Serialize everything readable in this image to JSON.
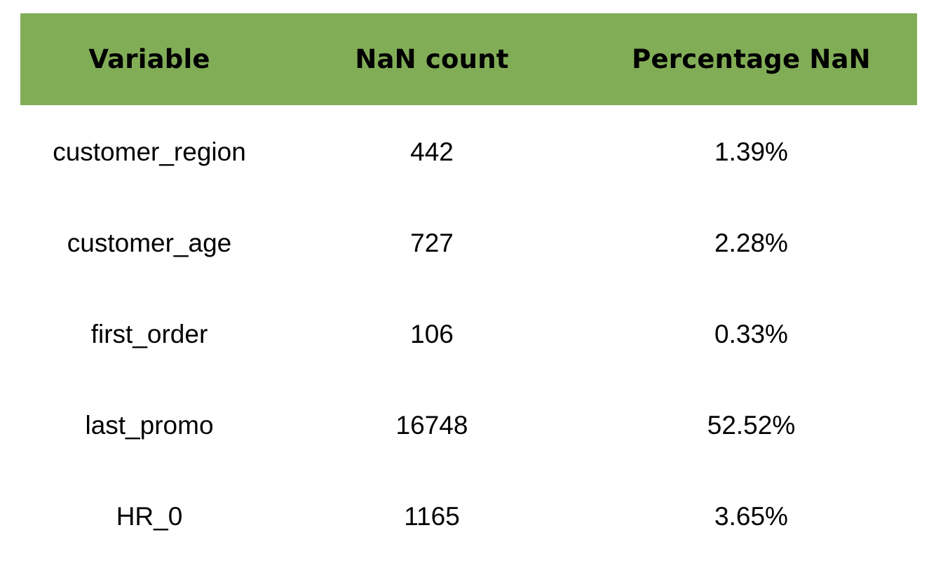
{
  "table": {
    "header_bg": "#82ad57",
    "headers": [
      "Variable",
      "NaN count",
      "Percentage NaN"
    ],
    "rows": [
      {
        "variable": "customer_region",
        "nan_count": "442",
        "percentage": "1.39%"
      },
      {
        "variable": "customer_age",
        "nan_count": "727",
        "percentage": "2.28%"
      },
      {
        "variable": "first_order",
        "nan_count": "106",
        "percentage": "0.33%"
      },
      {
        "variable": "last_promo",
        "nan_count": "16748",
        "percentage": "52.52%"
      },
      {
        "variable": "HR_0",
        "nan_count": "1165",
        "percentage": "3.65%"
      }
    ]
  }
}
